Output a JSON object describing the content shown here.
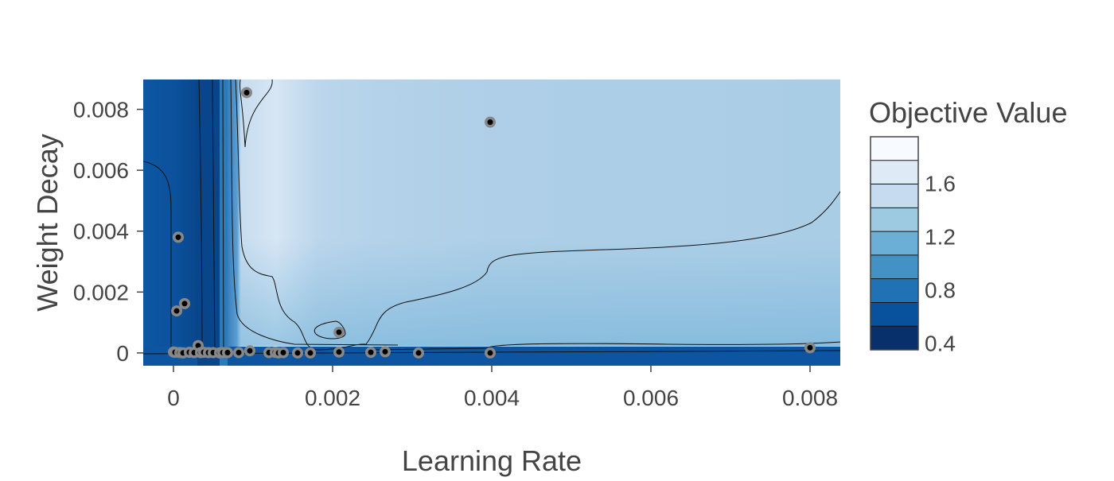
{
  "chart_data": {
    "type": "contour",
    "xlabel": "Learning Rate",
    "ylabel": "Weight Decay",
    "xlim": [
      -0.00038,
      0.00838
    ],
    "ylim": [
      -0.00042,
      0.00898
    ],
    "x_ticks": [
      0,
      0.002,
      0.004,
      0.006,
      0.008
    ],
    "x_tick_labels": [
      "0",
      "0.002",
      "0.004",
      "0.006",
      "0.008"
    ],
    "y_ticks": [
      0,
      0.002,
      0.004,
      0.006,
      0.008
    ],
    "y_tick_labels": [
      "0",
      "0.002",
      "0.004",
      "0.006",
      "0.008"
    ],
    "colorbar": {
      "title": "Objective Value",
      "range": [
        0.35,
        1.95
      ],
      "tick_values": [
        0.4,
        0.8,
        1.2,
        1.6
      ],
      "tick_labels": [
        "0.4",
        "0.8",
        "1.2",
        "1.6"
      ],
      "colors": [
        "#08306b",
        "#08519c",
        "#2171b5",
        "#4292c6",
        "#6baed6",
        "#9ecae1",
        "#c6dbef",
        "#deebf7",
        "#f7fbff"
      ]
    },
    "points": [
      {
        "x": 0.0,
        "y": 3e-05
      },
      {
        "x": 2e-05,
        "y": 2e-05
      },
      {
        "x": 4e-05,
        "y": 0.00138
      },
      {
        "x": 6e-05,
        "y": 0.0038
      },
      {
        "x": 8e-05,
        "y": 1e-05
      },
      {
        "x": 0.00012,
        "y": 0.0
      },
      {
        "x": 0.00014,
        "y": 0.00162
      },
      {
        "x": 0.0002,
        "y": 2e-05
      },
      {
        "x": 0.00026,
        "y": 1e-05
      },
      {
        "x": 0.00031,
        "y": 0.00024
      },
      {
        "x": 0.00034,
        "y": 1e-05
      },
      {
        "x": 0.00038,
        "y": 2e-05
      },
      {
        "x": 0.00044,
        "y": 1e-05
      },
      {
        "x": 0.0005,
        "y": 1e-05
      },
      {
        "x": 0.00058,
        "y": 0.0
      },
      {
        "x": 0.00062,
        "y": 1e-05
      },
      {
        "x": 0.00068,
        "y": 1e-05
      },
      {
        "x": 0.00082,
        "y": 1e-05
      },
      {
        "x": 0.00092,
        "y": 0.00855
      },
      {
        "x": 0.00096,
        "y": 7e-05
      },
      {
        "x": 0.0012,
        "y": 1e-05
      },
      {
        "x": 0.00128,
        "y": 2e-05
      },
      {
        "x": 0.00132,
        "y": 0.0
      },
      {
        "x": 0.00138,
        "y": 1e-05
      },
      {
        "x": 0.00156,
        "y": 0.0
      },
      {
        "x": 0.00172,
        "y": 0.0
      },
      {
        "x": 0.00208,
        "y": 3e-05
      },
      {
        "x": 0.00208,
        "y": 0.00068
      },
      {
        "x": 0.00248,
        "y": 2e-05
      },
      {
        "x": 0.00266,
        "y": 4e-05
      },
      {
        "x": 0.00308,
        "y": 0.0
      },
      {
        "x": 0.00398,
        "y": 0.0
      },
      {
        "x": 0.00398,
        "y": 0.00758
      },
      {
        "x": 0.008,
        "y": 0.00017
      }
    ]
  }
}
